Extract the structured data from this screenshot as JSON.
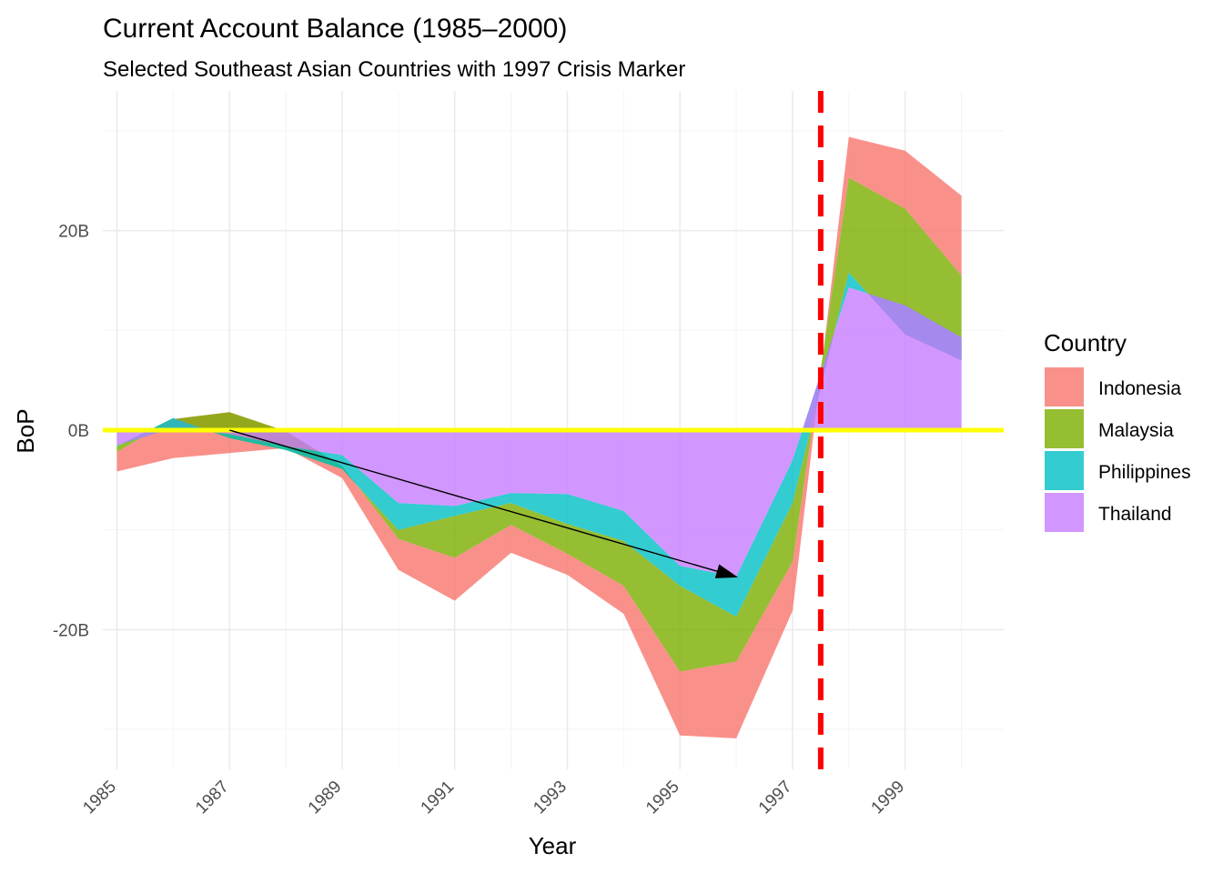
{
  "chart_data": {
    "type": "area",
    "stacked": true,
    "title": "Current Account Balance (1985–2000)",
    "subtitle": "Selected Southeast Asian Countries with 1997 Crisis Marker",
    "xlabel": "Year",
    "ylabel": "BoP",
    "x": [
      1985,
      1986,
      1987,
      1988,
      1989,
      1990,
      1991,
      1992,
      1993,
      1994,
      1995,
      1996,
      1997,
      1998,
      1999,
      2000
    ],
    "xticks": [
      1985,
      1987,
      1989,
      1991,
      1993,
      1995,
      1997,
      1999
    ],
    "xtick_labels": [
      "1985",
      "1987",
      "1989",
      "1991",
      "1993",
      "1995",
      "1997",
      "1999"
    ],
    "xlim": [
      1984.75,
      2000.75
    ],
    "ylim": [
      -34000000000,
      34000000000
    ],
    "yticks": [
      -20000000000,
      0,
      20000000000
    ],
    "ytick_labels": [
      "-20B",
      "0B",
      "20B"
    ],
    "legend_title": "Country",
    "legend_position": "right",
    "grid": true,
    "series": [
      {
        "name": "Indonesia",
        "color": "#F8766D",
        "values": [
          -1950000000,
          -3900000000,
          -4100000000,
          -1700000000,
          -1200000000,
          -3100000000,
          -4300000000,
          -2800000000,
          -2100000000,
          -2800000000,
          -6400000000,
          -7700000000,
          -4900000000,
          4100000000,
          5800000000,
          8000000000
        ]
      },
      {
        "name": "Malaysia",
        "color": "#7CAE00",
        "values": [
          -600000000,
          -100000000,
          2600000000,
          1900000000,
          300000000,
          -900000000,
          -4200000000,
          -2200000000,
          -3000000000,
          -4500000000,
          -8600000000,
          -4500000000,
          -5900000000,
          9500000000,
          12600000000,
          8500000000
        ]
      },
      {
        "name": "Philippines",
        "color": "#00BFC4",
        "values": [
          -100000000,
          1000000000,
          -400000000,
          -400000000,
          -1400000000,
          -2700000000,
          -1000000000,
          -1000000000,
          -3000000000,
          -3000000000,
          -2000000000,
          -4000000000,
          -4300000000,
          1500000000,
          -2900000000,
          -2300000000
        ]
      },
      {
        "name": "Thailand",
        "color": "#C77CFF",
        "values": [
          -1500000000,
          200000000,
          -400000000,
          -1600000000,
          -2500000000,
          -7300000000,
          -7600000000,
          -6300000000,
          -6400000000,
          -8100000000,
          -13600000000,
          -14700000000,
          -3000000000,
          14300000000,
          12500000000,
          9300000000
        ]
      }
    ],
    "annotations": [
      {
        "type": "hline",
        "y": 0,
        "color": "#FFFF00"
      },
      {
        "type": "vline",
        "x": 1997.5,
        "color": "#FF0000",
        "style": "dashed"
      },
      {
        "type": "arrow",
        "x1": 1987,
        "y1": 0,
        "x2": 1996,
        "y2": -14700000000,
        "color": "#000000"
      }
    ]
  }
}
